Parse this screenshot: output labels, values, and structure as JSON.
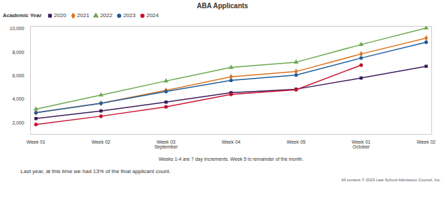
{
  "chart_data": {
    "type": "line",
    "title": "ABA Applicants",
    "legend_title": "Academic Year",
    "legend": "top-left",
    "categories": [
      "Week 01",
      "Week 02",
      "Week 03",
      "Week 04",
      "Week 05",
      "Week 01",
      "Week 02"
    ],
    "category_groups": [
      null,
      null,
      "September",
      null,
      null,
      "October",
      null
    ],
    "x_label": "Weeks 1-4 are 7 day increments. Week 5 is remainder of the month.",
    "series": [
      {
        "name": "2020",
        "color": "#3b1a5a",
        "marker": "square",
        "values": [
          2350,
          3000,
          3750,
          4550,
          4850,
          5800,
          6800
        ]
      },
      {
        "name": "2021",
        "color": "#d9731f",
        "marker": "diamond",
        "values": [
          2850,
          3650,
          4750,
          5900,
          6350,
          7850,
          9200
        ]
      },
      {
        "name": "2022",
        "color": "#6aa84f",
        "marker": "triangle",
        "values": [
          3150,
          4350,
          5550,
          6700,
          7150,
          8650,
          10050
        ]
      },
      {
        "name": "2023",
        "color": "#1f5c99",
        "marker": "circle",
        "values": [
          2850,
          3650,
          4650,
          5600,
          6050,
          7500,
          8850
        ]
      },
      {
        "name": "2024",
        "color": "#c8102e",
        "marker": "circle",
        "values": [
          1850,
          2550,
          3350,
          4400,
          4800,
          6900,
          null
        ]
      }
    ],
    "ylim": [
      1000,
      10200
    ],
    "yticks": [
      {
        "value": 2000,
        "label": "2,000"
      },
      {
        "value": 4000,
        "label": "4,000"
      },
      {
        "value": 6000,
        "label": "6,000"
      },
      {
        "value": 8000,
        "label": "8,000"
      },
      {
        "value": 10000,
        "label": "10,000"
      }
    ],
    "grid": false,
    "caption": "Last year, at this time we had 13% of the final applicant count.",
    "source": "All content © 2023 Law School Admission Council, Inc."
  }
}
